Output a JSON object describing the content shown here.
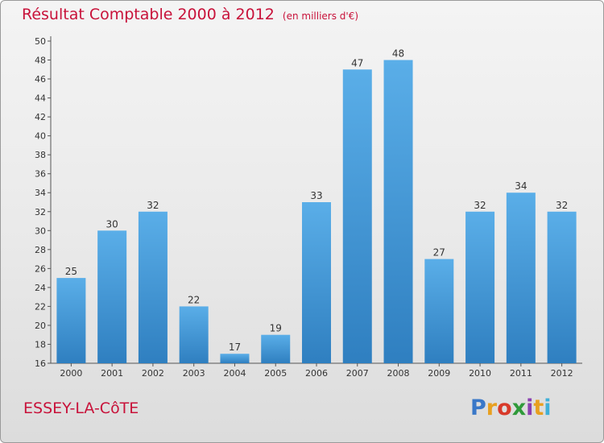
{
  "chart_data": {
    "type": "bar",
    "title": "Résultat Comptable 2000 à 2012",
    "subtitle": "(en milliers d'€)",
    "categories": [
      "2000",
      "2001",
      "2002",
      "2003",
      "2004",
      "2005",
      "2006",
      "2007",
      "2008",
      "2009",
      "2010",
      "2011",
      "2012"
    ],
    "values": [
      25,
      30,
      32,
      22,
      17,
      19,
      33,
      47,
      48,
      27,
      32,
      34,
      32
    ],
    "ylim": [
      16,
      50
    ],
    "yticks": [
      16,
      18,
      20,
      22,
      24,
      26,
      28,
      30,
      32,
      34,
      36,
      38,
      40,
      42,
      44,
      46,
      48,
      50
    ],
    "grid": false,
    "bar_color": "#4f9fdd"
  },
  "place_name": "ESSEY-LA-CôTE",
  "logo": {
    "text": "Proxiti",
    "colors": [
      "#3a78c8",
      "#e8a020",
      "#d83a2a",
      "#2f9a3a",
      "#8a3fb0",
      "#e8a020",
      "#3fb0d8"
    ]
  }
}
